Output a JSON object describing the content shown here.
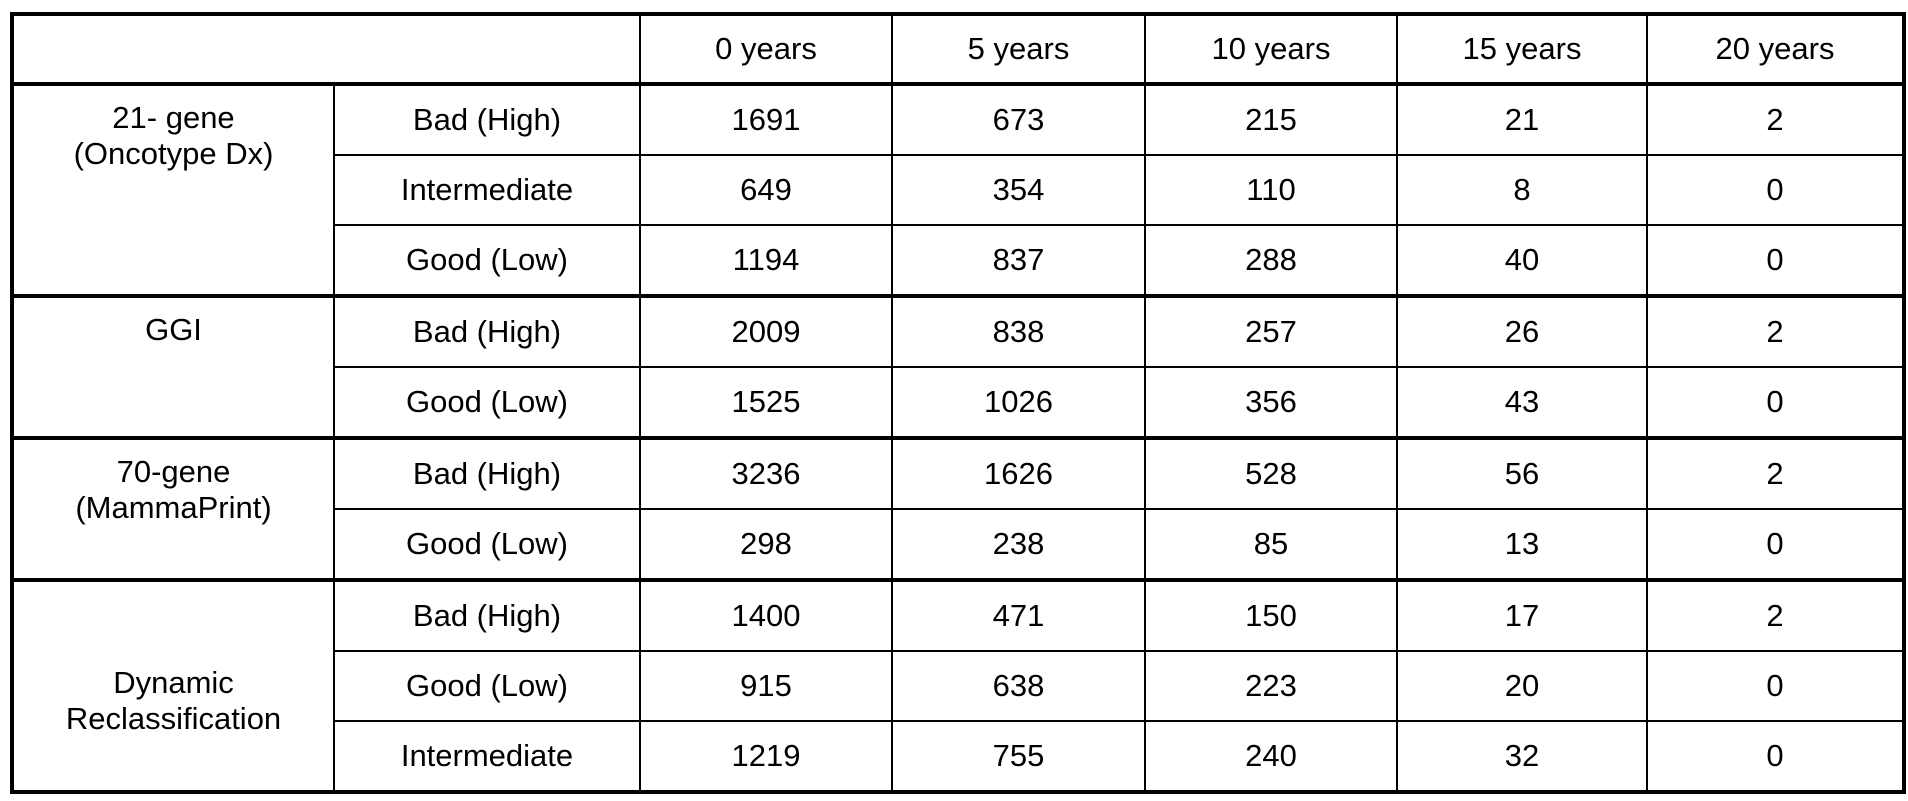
{
  "columns": [
    "0 years",
    "5 years",
    "10 years",
    "15 years",
    "20 years"
  ],
  "groups": [
    {
      "name": "21- gene\n(Oncotype Dx)",
      "rows": [
        {
          "label": "Bad (High)",
          "values": [
            "1691",
            "673",
            "215",
            "21",
            "2"
          ]
        },
        {
          "label": "Intermediate",
          "values": [
            "649",
            "354",
            "110",
            "8",
            "0"
          ]
        },
        {
          "label": "Good (Low)",
          "values": [
            "1194",
            "837",
            "288",
            "40",
            "0"
          ]
        }
      ]
    },
    {
      "name": "GGI",
      "rows": [
        {
          "label": "Bad (High)",
          "values": [
            "2009",
            "838",
            "257",
            "26",
            "2"
          ]
        },
        {
          "label": "Good (Low)",
          "values": [
            "1525",
            "1026",
            "356",
            "43",
            "0"
          ]
        }
      ]
    },
    {
      "name": "70-gene\n(MammaPrint)",
      "rows": [
        {
          "label": "Bad (High)",
          "values": [
            "3236",
            "1626",
            "528",
            "56",
            "2"
          ]
        },
        {
          "label": "Good (Low)",
          "values": [
            "298",
            "238",
            "85",
            "13",
            "0"
          ]
        }
      ]
    },
    {
      "name": "Dynamic\nReclassification",
      "rows": [
        {
          "label": "Bad (High)",
          "values": [
            "1400",
            "471",
            "150",
            "17",
            "2"
          ]
        },
        {
          "label": "Good (Low)",
          "values": [
            "915",
            "638",
            "223",
            "20",
            "0"
          ]
        },
        {
          "label": "Intermediate",
          "values": [
            "1219",
            "755",
            "240",
            "32",
            "0"
          ]
        }
      ]
    }
  ]
}
